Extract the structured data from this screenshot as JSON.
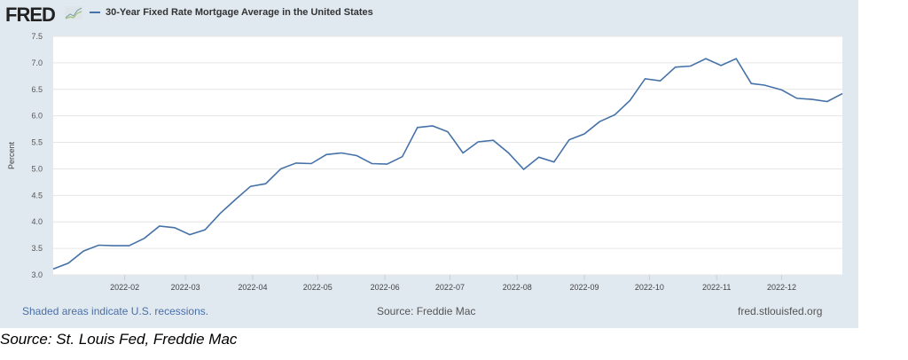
{
  "logo": "FRED",
  "chart_data": {
    "type": "line",
    "title": "30-Year Fixed Rate Mortgage Average in the United States",
    "ylabel": "Percent",
    "xlabel": "",
    "ylim": [
      3.0,
      7.5
    ],
    "yticks": [
      "3.0",
      "3.5",
      "4.0",
      "4.5",
      "5.0",
      "5.5",
      "6.0",
      "6.5",
      "7.0",
      "7.5"
    ],
    "xticks": [
      {
        "label": "2022-02",
        "date": "2022-02-01"
      },
      {
        "label": "2022-03",
        "date": "2022-03-01"
      },
      {
        "label": "2022-04",
        "date": "2022-04-01"
      },
      {
        "label": "2022-05",
        "date": "2022-05-01"
      },
      {
        "label": "2022-06",
        "date": "2022-06-01"
      },
      {
        "label": "2022-07",
        "date": "2022-07-01"
      },
      {
        "label": "2022-08",
        "date": "2022-08-01"
      },
      {
        "label": "2022-09",
        "date": "2022-09-01"
      },
      {
        "label": "2022-10",
        "date": "2022-10-01"
      },
      {
        "label": "2022-11",
        "date": "2022-11-01"
      },
      {
        "label": "2022-12",
        "date": "2022-12-01"
      }
    ],
    "xrange": [
      "2021-12-30",
      "2022-12-29"
    ],
    "grid": true,
    "series": [
      {
        "name": "30-Year Fixed Rate Mortgage Average in the United States",
        "color": "#4572a7",
        "x": [
          "2021-12-30",
          "2022-01-06",
          "2022-01-13",
          "2022-01-20",
          "2022-01-27",
          "2022-02-03",
          "2022-02-10",
          "2022-02-17",
          "2022-02-24",
          "2022-03-03",
          "2022-03-10",
          "2022-03-17",
          "2022-03-24",
          "2022-03-31",
          "2022-04-07",
          "2022-04-14",
          "2022-04-21",
          "2022-04-28",
          "2022-05-05",
          "2022-05-12",
          "2022-05-19",
          "2022-05-26",
          "2022-06-02",
          "2022-06-09",
          "2022-06-16",
          "2022-06-23",
          "2022-06-30",
          "2022-07-07",
          "2022-07-14",
          "2022-07-21",
          "2022-07-28",
          "2022-08-04",
          "2022-08-11",
          "2022-08-18",
          "2022-08-25",
          "2022-09-01",
          "2022-09-08",
          "2022-09-15",
          "2022-09-22",
          "2022-09-29",
          "2022-10-06",
          "2022-10-13",
          "2022-10-20",
          "2022-10-27",
          "2022-11-03",
          "2022-11-10",
          "2022-11-17",
          "2022-11-23",
          "2022-12-01",
          "2022-12-08",
          "2022-12-15",
          "2022-12-22",
          "2022-12-29"
        ],
        "values": [
          3.11,
          3.22,
          3.45,
          3.56,
          3.55,
          3.55,
          3.69,
          3.92,
          3.89,
          3.76,
          3.85,
          4.16,
          4.42,
          4.67,
          4.72,
          5.0,
          5.11,
          5.1,
          5.27,
          5.3,
          5.25,
          5.1,
          5.09,
          5.23,
          5.78,
          5.81,
          5.7,
          5.3,
          5.51,
          5.54,
          5.3,
          4.99,
          5.22,
          5.13,
          5.55,
          5.66,
          5.89,
          6.02,
          6.29,
          6.7,
          6.66,
          6.92,
          6.94,
          7.08,
          6.95,
          7.08,
          6.61,
          6.58,
          6.49,
          6.33,
          6.31,
          6.27,
          6.42
        ]
      }
    ]
  },
  "footer": {
    "recessions": "Shaded areas indicate U.S. recessions.",
    "source": "Source: Freddie Mac",
    "site": "fred.stlouisfed.org"
  },
  "caption": "Source: St. Louis Fed, Freddie Mac"
}
